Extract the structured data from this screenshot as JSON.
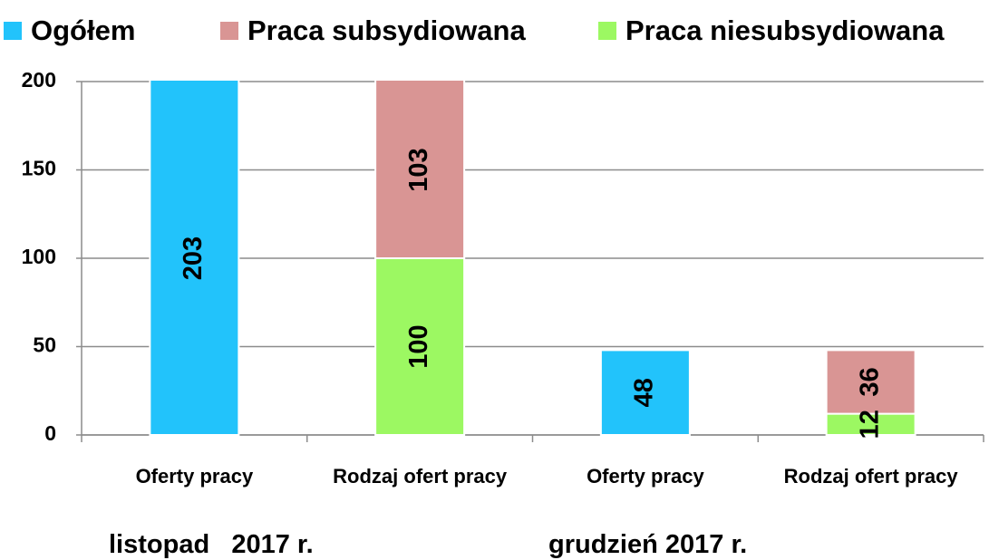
{
  "chart_data": {
    "type": "stacked_bar",
    "categories": [
      "Oferty pracy",
      "Rodzaj ofert pracy",
      "Oferty pracy",
      "Rodzaj ofert pracy"
    ],
    "series": [
      {
        "name": "Ogółem",
        "color": "#22c3fb",
        "values": [
          203,
          null,
          48,
          null
        ]
      },
      {
        "name": "Praca niesubsydiowana",
        "color": "#9cf862",
        "values": [
          null,
          100,
          null,
          12
        ]
      },
      {
        "name": "Praca subsydiowana",
        "color": "#d99594",
        "values": [
          null,
          103,
          null,
          36
        ]
      }
    ],
    "legend_order": [
      0,
      2,
      1
    ],
    "ylim": [
      0,
      200
    ],
    "yticks": [
      0,
      50,
      100,
      150,
      200
    ],
    "grid": true,
    "annotations": [
      "listopad   2017 r.",
      "grudzień 2017 r."
    ]
  }
}
